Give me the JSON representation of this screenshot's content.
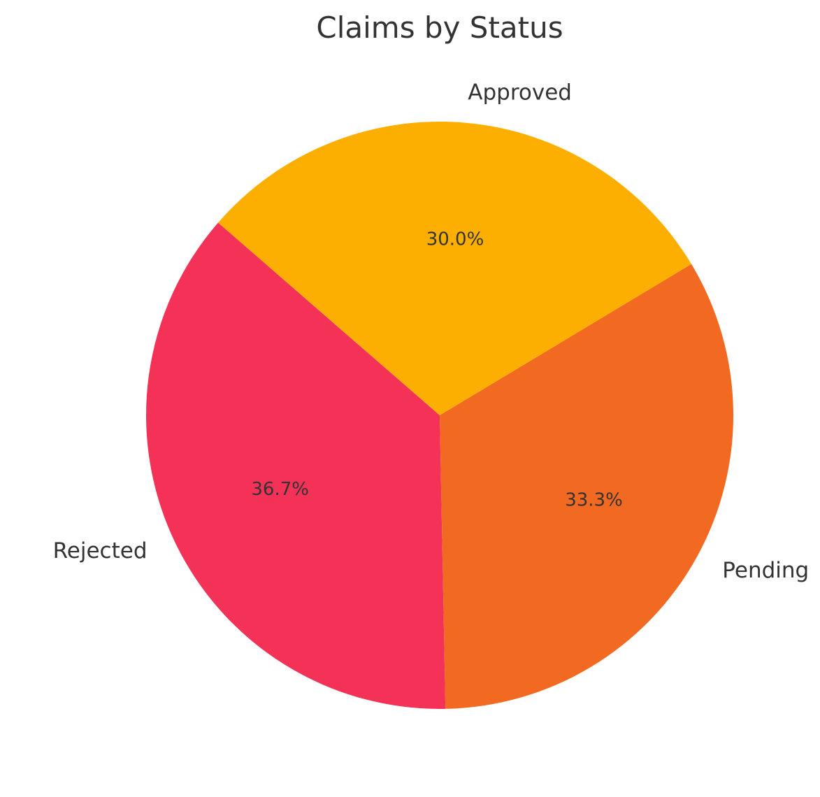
{
  "chart_data": {
    "type": "pie",
    "title": "Claims by Status",
    "slices": [
      {
        "label": "Rejected",
        "value": 36.7,
        "pct_label": "36.7%",
        "color": "#F43257"
      },
      {
        "label": "Pending",
        "value": 33.3,
        "pct_label": "33.3%",
        "color": "#F26A21"
      },
      {
        "label": "Approved",
        "value": 30.0,
        "pct_label": "30.0%",
        "color": "#FDAF01"
      }
    ],
    "start_angle_deg": 139,
    "direction": "counterclockwise",
    "legend": "none"
  }
}
